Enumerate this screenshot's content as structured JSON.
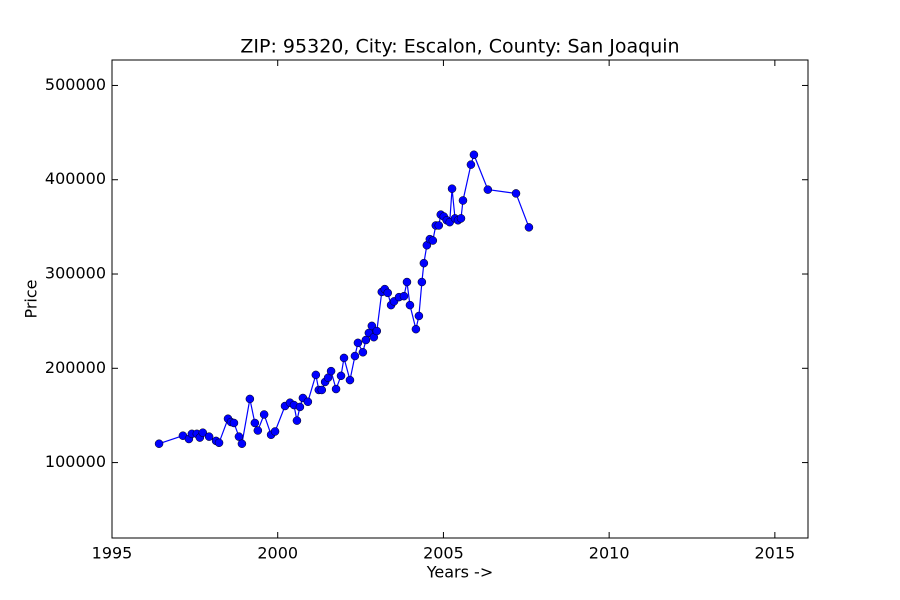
{
  "chart_data": {
    "type": "line",
    "title": "ZIP: 95320, City: Escalon, County: San Joaquin",
    "x_label": "Years ->",
    "y_label": "Price",
    "xlim": [
      1995,
      2016
    ],
    "xticks": [
      1995,
      2000,
      2005,
      2010,
      2015
    ],
    "ylim": [
      20000,
      527000
    ],
    "yticks": [
      100000,
      200000,
      300000,
      400000,
      500000
    ],
    "grid": false,
    "markers": true,
    "series": [
      {
        "color": "#0000ff",
        "x": [
          1996.42,
          1997.14,
          1997.32,
          1997.41,
          1997.56,
          1997.65,
          1997.74,
          1997.93,
          1998.14,
          1998.23,
          1998.5,
          1998.59,
          1998.68,
          1998.83,
          1998.92,
          1999.16,
          1999.31,
          1999.4,
          1999.59,
          1999.8,
          1999.92,
          2000.22,
          2000.37,
          2000.49,
          2000.58,
          2000.67,
          2000.76,
          2000.91,
          2001.15,
          2001.24,
          2001.33,
          2001.43,
          2001.52,
          2001.61,
          2001.76,
          2001.91,
          2002.0,
          2002.18,
          2002.33,
          2002.42,
          2002.57,
          2002.66,
          2002.75,
          2002.84,
          2002.9,
          2002.99,
          2003.14,
          2003.23,
          2003.32,
          2003.42,
          2003.51,
          2003.66,
          2003.81,
          2003.9,
          2003.99,
          2004.17,
          2004.26,
          2004.35,
          2004.41,
          2004.5,
          2004.59,
          2004.68,
          2004.77,
          2004.86,
          2004.92,
          2005.01,
          2005.1,
          2005.19,
          2005.26,
          2005.35,
          2005.44,
          2005.53,
          2005.59,
          2005.83,
          2005.92,
          2006.34,
          2007.19,
          2007.58
        ],
        "values": [
          120000,
          128500,
          125000,
          130500,
          130500,
          126500,
          131700,
          127500,
          123000,
          121000,
          146500,
          143000,
          142000,
          127500,
          120000,
          167500,
          142000,
          134000,
          151000,
          129500,
          133000,
          160000,
          163500,
          161000,
          144500,
          159000,
          168500,
          164500,
          193000,
          177000,
          177000,
          185500,
          190000,
          197000,
          178000,
          192000,
          211000,
          187500,
          213000,
          227000,
          217000,
          230000,
          237500,
          245000,
          233000,
          239500,
          281000,
          284000,
          280000,
          267000,
          271000,
          275500,
          276500,
          291500,
          267000,
          241500,
          255500,
          291500,
          311500,
          330500,
          337000,
          335500,
          351500,
          351500,
          363000,
          361000,
          357000,
          355000,
          390500,
          359000,
          357000,
          359000,
          378000,
          416000,
          426500,
          389500,
          385500,
          349500
        ]
      }
    ]
  }
}
